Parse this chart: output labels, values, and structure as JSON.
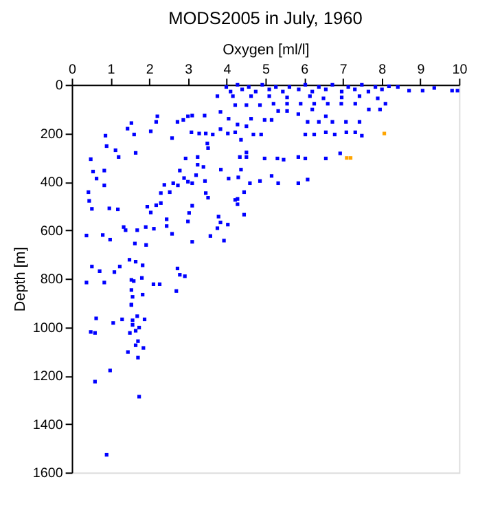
{
  "chart_data": {
    "type": "scatter",
    "title": "MODS2005 in July, 1960",
    "xlabel": "Oxygen [ml/l]",
    "ylabel": "Depth [m]",
    "xlim": [
      0,
      10
    ],
    "xticks": [
      0,
      1,
      2,
      3,
      4,
      5,
      6,
      7,
      8,
      9,
      10
    ],
    "ylim": [
      1600,
      0
    ],
    "yticks": [
      0,
      200,
      400,
      600,
      800,
      1000,
      1200,
      1400,
      1600
    ],
    "grid": false,
    "marker": "square",
    "series": [
      {
        "color": "#0000ff",
        "x": [
          3.99,
          4.1,
          4.28,
          4.4,
          4.57,
          4.75,
          4.92,
          5.1,
          5.27,
          5.45,
          5.62,
          5.86,
          6.03,
          6.21,
          6.38,
          6.56,
          6.73,
          6.97,
          7.14,
          7.31,
          7.49,
          7.66,
          7.84,
          8.01,
          8.19,
          8.42,
          8.71,
          9.06,
          9.36,
          9.82,
          9.96,
          4.16,
          4.63,
          5.1,
          5.56,
          6.15,
          6.5,
          6.97,
          7.43,
          7.9,
          4.22,
          4.51,
          4.86,
          5.21,
          5.56,
          5.91,
          6.26,
          6.61,
          6.96,
          7.32,
          7.67,
          7.96,
          8.1,
          5.56,
          5.85,
          6.21,
          6.56,
          6.03,
          6.26,
          6.56,
          6.79,
          7.09,
          7.32,
          7.49,
          6.38,
          6.73,
          7.08,
          7.43,
          6.09,
          3.76,
          2.21,
          2.18,
          1.54,
          1.44,
          2.04,
          1.61,
          2.59,
          0.87,
          0.9,
          1.13,
          1.21,
          1.65,
          0.49,
          0.55,
          0.84,
          0.64,
          0.84,
          0.43,
          0.45,
          0.52,
          0.97,
          1.19,
          0.38,
          0.8,
          0.99,
          1.34,
          1.39,
          1.69,
          1.91,
          2.12,
          1.63,
          1.92,
          1.49,
          1.65,
          1.83,
          1.24,
          1.1,
          0.72,
          0.52,
          0.38,
          0.84,
          1.54,
          1.6,
          1.81,
          2.11,
          2.27,
          1.54,
          1.57,
          1.83,
          1.54,
          2.73,
          2.79,
          2.92,
          2.7,
          1.95,
          2.04,
          2.18,
          2.3,
          2.45,
          2.45,
          2.59,
          3.0,
          3.11,
          3.03,
          3.11,
          2.3,
          2.39,
          2.53,
          2.62,
          2.74,
          2.79,
          2.94,
          2.9,
          3.0,
          3.11,
          3.21,
          3.25,
          3.25,
          3.4,
          3.44,
          3.46,
          3.52,
          3.58,
          3.76,
          3.79,
          3.84,
          3.93,
          4.03,
          4.22,
          4.28,
          4.28,
          4.45,
          4.45,
          4.6,
          4.86,
          5.16,
          5.33,
          5.85,
          6.09,
          3.85,
          4.05,
          4.3,
          4.34,
          4.51,
          4.37,
          4.51,
          4.98,
          5.31,
          5.47,
          5.85,
          6.03,
          6.56,
          6.93,
          3.43,
          3.46,
          3.5,
          3.52,
          3.64,
          3.84,
          4.03,
          4.22,
          4.37,
          4.69,
          4.89,
          5.16,
          3.11,
          2.88,
          3.0,
          2.73,
          3.09,
          3.29,
          3.84,
          4.05,
          4.28,
          4.51,
          4.63,
          4.98,
          5.33,
          1.54,
          0.63,
          0.49,
          0.6,
          1.07,
          1.3,
          1.57,
          1.69,
          1.88,
          1.57,
          1.74,
          1.65,
          1.5,
          1.71,
          1.65,
          1.85,
          1.45,
          1.71,
          0.99,
          0.6,
          1.74,
          0.9
        ],
        "values": [
          9,
          28,
          0,
          19,
          9,
          28,
          0,
          19,
          9,
          28,
          9,
          19,
          0,
          28,
          9,
          19,
          0,
          28,
          9,
          19,
          0,
          28,
          9,
          19,
          6,
          9,
          24,
          24,
          13,
          24,
          24,
          47,
          47,
          47,
          52,
          47,
          56,
          52,
          47,
          56,
          84,
          84,
          84,
          78,
          78,
          78,
          78,
          78,
          78,
          78,
          102,
          102,
          78,
          108,
          121,
          102,
          130,
          205,
          205,
          196,
          205,
          196,
          196,
          210,
          153,
          153,
          153,
          153,
          153,
          47,
          130,
          153,
          158,
          181,
          192,
          205,
          220,
          210,
          253,
          270,
          298,
          281,
          307,
          358,
          354,
          387,
          415,
          443,
          479,
          512,
          510,
          514,
          622,
          620,
          639,
          587,
          600,
          600,
          587,
          594,
          655,
          661,
          722,
          730,
          745,
          750,
          773,
          769,
          750,
          816,
          816,
          805,
          810,
          797,
          823,
          823,
          847,
          875,
          866,
          907,
          758,
          784,
          790,
          851,
          503,
          527,
          497,
          488,
          555,
          583,
          615,
          564,
          499,
          529,
          648,
          447,
          413,
          443,
          406,
          415,
          354,
          304,
          385,
          400,
          406,
          373,
          330,
          298,
          339,
          397,
          447,
          466,
          624,
          592,
          544,
          568,
          643,
          577,
          475,
          471,
          493,
          536,
          443,
          406,
          397,
          376,
          406,
          406,
          391,
          350,
          387,
          382,
          298,
          298,
          350,
          279,
          304,
          304,
          309,
          298,
          304,
          304,
          283,
          127,
          201,
          242,
          261,
          205,
          183,
          201,
          196,
          227,
          205,
          205,
          145,
          127,
          145,
          130,
          153,
          196,
          201,
          112,
          140,
          164,
          171,
          140,
          145,
          108,
          909,
          964,
          1020,
          1024,
          983,
          968,
          972,
          955,
          968,
          991,
          1002,
          1015,
          1024,
          1058,
          1075,
          1086,
          1103,
          1126,
          1179,
          1225,
          1287,
          1527
        ]
      },
      {
        "color": "#ffa500",
        "x": [
          8.07,
          7.1,
          7.2
        ],
        "values": [
          201,
          302,
          302
        ]
      }
    ]
  }
}
